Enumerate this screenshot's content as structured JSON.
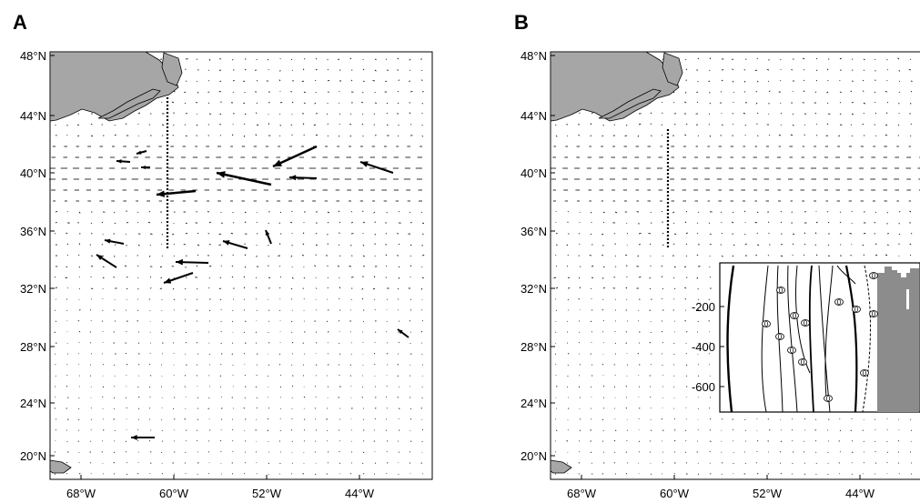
{
  "panels": [
    {
      "letter": "A",
      "lat_ticks": [
        "48°N",
        "44°N",
        "40°N",
        "36°N",
        "32°N",
        "28°N",
        "24°N",
        "20°N"
      ],
      "lon_ticks": [
        "68°W",
        "60°W",
        "52°W",
        "44°W"
      ],
      "land_color": "#a6a6a6",
      "vector_color": "#000000",
      "has_inset": false
    },
    {
      "letter": "B",
      "lat_ticks": [
        "48°N",
        "44°N",
        "40°N",
        "36°N",
        "32°N",
        "28°N",
        "24°N",
        "20°N"
      ],
      "lon_ticks": [
        "68°W",
        "60°W",
        "52°W",
        "44°W"
      ],
      "land_color": "#a6a6a6",
      "vector_color": "#000000",
      "has_inset": true,
      "inset": {
        "y_ticks": [
          "-200",
          "-400",
          "-600"
        ],
        "contour_labels": [
          "0",
          "0",
          "0",
          "0",
          "0",
          "0",
          "0",
          "0",
          "0",
          "0",
          "0",
          "0",
          "0"
        ]
      }
    }
  ]
}
